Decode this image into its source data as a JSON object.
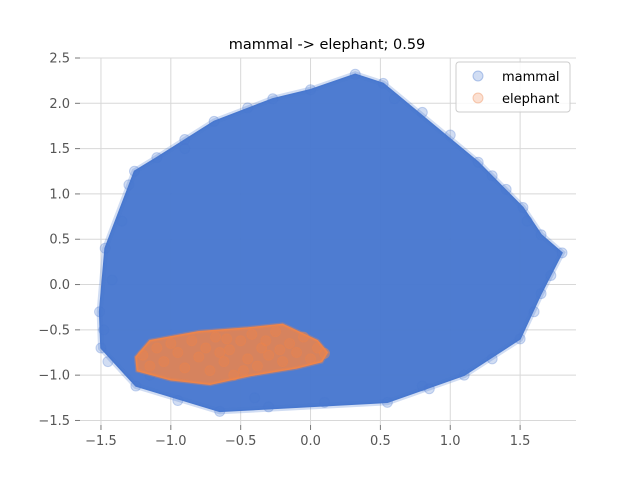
{
  "chart_data": {
    "type": "scatter",
    "title": "mammal -> elephant; 0.59",
    "xlabel": "",
    "ylabel": "",
    "xlim": [
      -1.65,
      1.9
    ],
    "ylim": [
      -1.55,
      2.5
    ],
    "xticks": [
      -1.5,
      -1.0,
      -0.5,
      0.0,
      0.5,
      1.0,
      1.5
    ],
    "xtick_labels": [
      "−1.5",
      "−1.0",
      "−0.5",
      "0.0",
      "0.5",
      "1.0",
      "1.5"
    ],
    "yticks": [
      -1.5,
      -1.0,
      -0.5,
      0.0,
      0.5,
      1.0,
      1.5,
      2.0,
      2.5
    ],
    "ytick_labels": [
      "−1.5",
      "−1.0",
      "−0.5",
      "0.0",
      "0.5",
      "1.0",
      "1.5",
      "2.0",
      "2.5"
    ],
    "grid": true,
    "legend_position": "top-right",
    "series": [
      {
        "name": "mammal",
        "color": "#4878cf",
        "hull": [
          [
            -1.51,
            -0.3
          ],
          [
            -1.47,
            0.4
          ],
          [
            -1.26,
            1.25
          ],
          [
            -1.1,
            1.4
          ],
          [
            -0.69,
            1.8
          ],
          [
            -0.27,
            2.05
          ],
          [
            0.0,
            2.15
          ],
          [
            0.32,
            2.32
          ],
          [
            0.52,
            2.22
          ],
          [
            1.2,
            1.35
          ],
          [
            1.52,
            0.85
          ],
          [
            1.65,
            0.55
          ],
          [
            1.8,
            0.35
          ],
          [
            1.65,
            -0.1
          ],
          [
            1.5,
            -0.6
          ],
          [
            1.1,
            -1.0
          ],
          [
            0.55,
            -1.3
          ],
          [
            -0.65,
            -1.4
          ],
          [
            -1.25,
            -1.12
          ],
          [
            -1.5,
            -0.7
          ]
        ],
        "ring_points": [
          [
            -1.51,
            -0.3
          ],
          [
            -1.47,
            0.4
          ],
          [
            -1.3,
            1.1
          ],
          [
            -1.26,
            1.25
          ],
          [
            -1.1,
            1.4
          ],
          [
            -0.9,
            1.6
          ],
          [
            -0.69,
            1.8
          ],
          [
            -0.45,
            1.95
          ],
          [
            -0.27,
            2.05
          ],
          [
            0.0,
            2.15
          ],
          [
            0.32,
            2.32
          ],
          [
            0.52,
            2.22
          ],
          [
            0.8,
            1.9
          ],
          [
            1.0,
            1.65
          ],
          [
            1.2,
            1.35
          ],
          [
            1.4,
            1.05
          ],
          [
            1.52,
            0.85
          ],
          [
            1.65,
            0.55
          ],
          [
            1.8,
            0.35
          ],
          [
            1.72,
            0.1
          ],
          [
            1.65,
            -0.1
          ],
          [
            1.5,
            -0.6
          ],
          [
            1.3,
            -0.82
          ],
          [
            1.1,
            -1.0
          ],
          [
            0.85,
            -1.15
          ],
          [
            0.55,
            -1.3
          ],
          [
            0.1,
            -1.3
          ],
          [
            -0.3,
            -1.35
          ],
          [
            -0.65,
            -1.4
          ],
          [
            -0.95,
            -1.28
          ],
          [
            -1.25,
            -1.12
          ],
          [
            -1.45,
            -0.85
          ],
          [
            -1.5,
            -0.7
          ],
          [
            -1.48,
            -0.5
          ],
          [
            -1.35,
            0.7
          ],
          [
            -0.9,
            1.5
          ],
          [
            0.6,
            2.05
          ],
          [
            1.3,
            1.2
          ],
          [
            1.55,
            0.7
          ],
          [
            1.6,
            -0.3
          ],
          [
            0.8,
            -1.12
          ],
          [
            -0.4,
            -1.25
          ],
          [
            -1.15,
            -1.0
          ],
          [
            -1.42,
            0.05
          ]
        ]
      },
      {
        "name": "elephant",
        "color": "#ee854a",
        "hull": [
          [
            -1.25,
            -0.8
          ],
          [
            -1.15,
            -0.62
          ],
          [
            -0.8,
            -0.52
          ],
          [
            -0.45,
            -0.48
          ],
          [
            -0.2,
            -0.44
          ],
          [
            0.05,
            -0.62
          ],
          [
            0.12,
            -0.75
          ],
          [
            0.08,
            -0.85
          ],
          [
            -0.1,
            -0.92
          ],
          [
            -0.42,
            -1.0
          ],
          [
            -0.72,
            -1.1
          ],
          [
            -1.0,
            -1.05
          ],
          [
            -1.24,
            -0.95
          ]
        ],
        "cluster_points": [
          [
            -1.2,
            -0.78
          ],
          [
            -1.1,
            -0.7
          ],
          [
            -1.05,
            -0.85
          ],
          [
            -0.95,
            -0.75
          ],
          [
            -0.9,
            -0.92
          ],
          [
            -0.85,
            -0.62
          ],
          [
            -0.8,
            -0.8
          ],
          [
            -0.75,
            -0.7
          ],
          [
            -0.72,
            -0.95
          ],
          [
            -0.68,
            -0.58
          ],
          [
            -0.62,
            -0.85
          ],
          [
            -0.58,
            -0.72
          ],
          [
            -0.55,
            -1.0
          ],
          [
            -0.5,
            -0.62
          ],
          [
            -0.45,
            -0.82
          ],
          [
            -0.42,
            -0.55
          ],
          [
            -0.38,
            -0.9
          ],
          [
            -0.35,
            -0.7
          ],
          [
            -0.3,
            -0.78
          ],
          [
            -0.25,
            -0.52
          ],
          [
            -0.2,
            -0.85
          ],
          [
            -0.15,
            -0.65
          ],
          [
            -0.1,
            -0.75
          ],
          [
            -0.05,
            -0.58
          ],
          [
            0.0,
            -0.82
          ],
          [
            0.05,
            -0.7
          ],
          [
            0.1,
            -0.76
          ],
          [
            -1.15,
            -0.9
          ],
          [
            -1.0,
            -0.65
          ],
          [
            -0.65,
            -0.75
          ],
          [
            -0.6,
            -0.6
          ],
          [
            -0.48,
            -0.95
          ],
          [
            -0.32,
            -0.62
          ],
          [
            -0.22,
            -0.72
          ]
        ]
      }
    ]
  }
}
